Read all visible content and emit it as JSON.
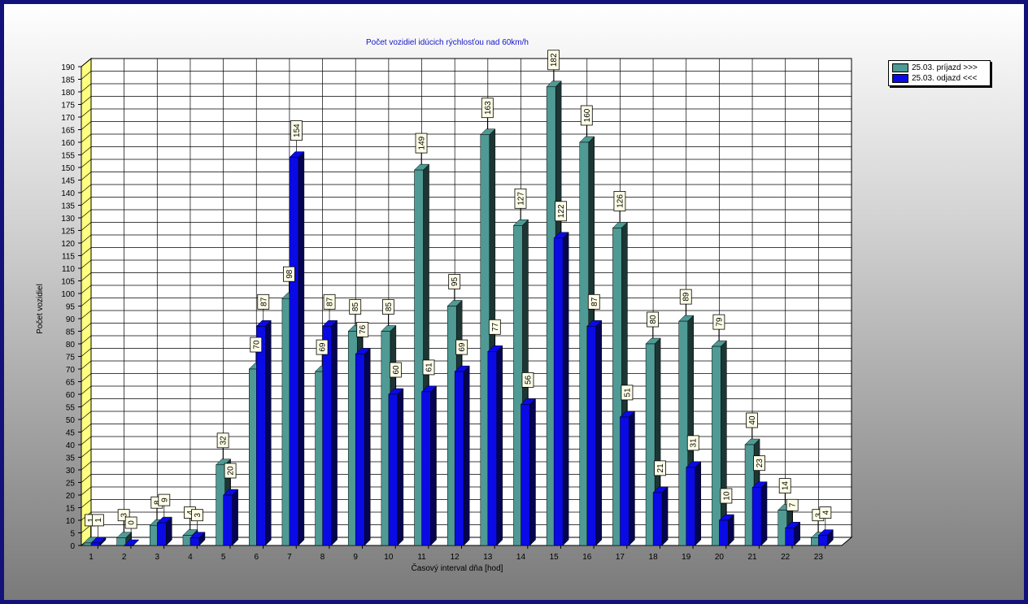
{
  "chart_data": {
    "type": "bar",
    "title": "Počet vozidiel idúcich rýchlosťou nad 60km/h",
    "xlabel": "Časový interval dňa [hod]",
    "ylabel": "Počet vozidiel",
    "ylim": [
      0,
      190
    ],
    "ytick_step": 5,
    "grid": true,
    "legend_position": "top-right",
    "categories": [
      "1",
      "2",
      "3",
      "4",
      "5",
      "6",
      "7",
      "8",
      "9",
      "10",
      "11",
      "12",
      "13",
      "14",
      "15",
      "16",
      "17",
      "18",
      "19",
      "20",
      "21",
      "22",
      "23"
    ],
    "series": [
      {
        "name": "25.03.  príjazd >>>",
        "color": "#4f9a94",
        "values": [
          1,
          3,
          8,
          4,
          32,
          70,
          98,
          69,
          85,
          85,
          149,
          95,
          163,
          127,
          182,
          160,
          126,
          80,
          89,
          79,
          40,
          14,
          3
        ]
      },
      {
        "name": "25.03.  odjazd <<<",
        "color": "#0a0ae6",
        "values": [
          1,
          0,
          9,
          3,
          20,
          87,
          154,
          87,
          76,
          60,
          61,
          69,
          77,
          56,
          122,
          87,
          51,
          21,
          31,
          10,
          23,
          7,
          4
        ]
      }
    ]
  }
}
